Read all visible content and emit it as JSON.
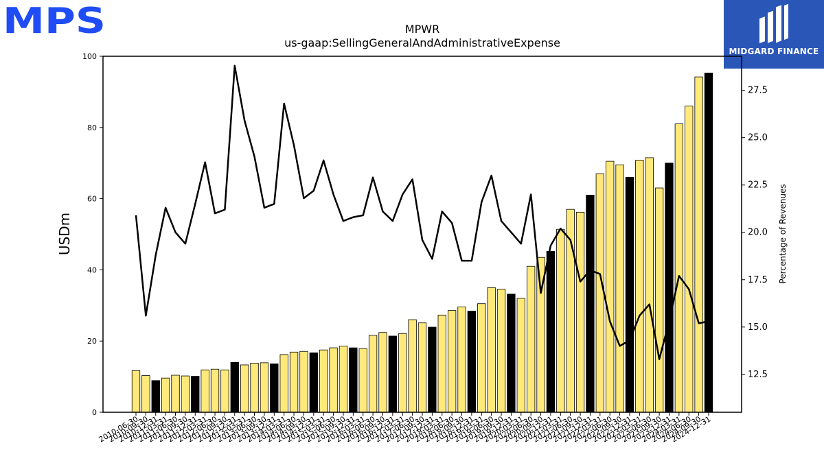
{
  "branding": {
    "mps_logo_text": "MPS",
    "midgard_name": "MIDGARD FINANCE",
    "mps_color": "#1f4cf5",
    "midgard_bg": "#2a56b8"
  },
  "chart_data": {
    "type": "bar",
    "title": "MPWR",
    "subtitle": "us-gaap:SellingGeneralAndAdministrativeExpense",
    "ylabel": "USDm",
    "y2label": "Percentage of Revenues",
    "ylim": [
      0,
      100
    ],
    "y2lim": [
      10.5,
      29.3
    ],
    "yticks": [
      "0",
      "20",
      "40",
      "60",
      "80",
      "100"
    ],
    "y2ticks": [
      "12.5",
      "15.0",
      "17.5",
      "20.0",
      "22.5",
      "25.0",
      "27.5"
    ],
    "bar_color_quarter": "#ffe97a",
    "bar_color_annual": "#000000",
    "line_color": "#000000",
    "categories": [
      "2010-06-30",
      "2010-09-30",
      "2010-12-31",
      "2011-03-31",
      "2011-06-30",
      "2011-09-30",
      "2011-12-31",
      "2012-03-31",
      "2012-06-30",
      "2012-09-30",
      "2012-12-31",
      "2013-03-31",
      "2013-06-30",
      "2013-09-30",
      "2013-12-31",
      "2014-03-31",
      "2014-06-30",
      "2014-09-30",
      "2014-12-31",
      "2015-03-31",
      "2015-06-30",
      "2015-09-30",
      "2015-12-31",
      "2016-03-31",
      "2016-06-30",
      "2016-09-30",
      "2016-12-31",
      "2017-03-31",
      "2017-06-30",
      "2017-09-30",
      "2017-12-31",
      "2018-03-31",
      "2018-06-30",
      "2018-09-30",
      "2018-12-31",
      "2019-03-31",
      "2019-06-30",
      "2019-09-30",
      "2019-12-31",
      "2020-03-31",
      "2020-06-30",
      "2020-09-30",
      "2020-12-31",
      "2021-03-31",
      "2021-06-30",
      "2021-09-30",
      "2021-12-31",
      "2022-03-31",
      "2022-06-30",
      "2022-09-30",
      "2022-12-31",
      "2023-03-31",
      "2023-06-30",
      "2023-09-30",
      "2023-12-31",
      "2024-03-31",
      "2024-06-30",
      "2024-09-30",
      "2024-12-31"
    ],
    "annual": [
      false,
      false,
      true,
      false,
      false,
      false,
      true,
      false,
      false,
      false,
      true,
      false,
      false,
      false,
      true,
      false,
      false,
      false,
      true,
      false,
      false,
      false,
      true,
      false,
      false,
      false,
      true,
      false,
      false,
      false,
      true,
      false,
      false,
      false,
      true,
      false,
      false,
      false,
      true,
      false,
      false,
      false,
      true,
      false,
      false,
      false,
      true,
      false,
      false,
      false,
      true,
      false,
      false,
      false,
      true,
      false,
      false,
      false,
      true
    ],
    "values": [
      11.7,
      10.3,
      8.9,
      9.6,
      10.4,
      10.2,
      10.1,
      11.9,
      12.1,
      11.9,
      14.0,
      13.3,
      13.8,
      13.9,
      13.6,
      16.2,
      16.9,
      17.1,
      16.7,
      17.5,
      18.1,
      18.6,
      18.1,
      17.9,
      21.6,
      22.4,
      21.4,
      22.1,
      26.0,
      25.1,
      23.9,
      27.3,
      28.6,
      29.6,
      28.4,
      30.5,
      35.0,
      34.6,
      33.2,
      32.0,
      41.0,
      43.5,
      45.2,
      51.4,
      57.0,
      56.2,
      61.0,
      67.0,
      70.5,
      69.5,
      66.0,
      70.8,
      71.5,
      63.0,
      70.0,
      81.0,
      86.0,
      94.2,
      95.3
    ],
    "line_pct": [
      20.9,
      15.6,
      18.8,
      21.3,
      20.0,
      19.4,
      21.5,
      23.7,
      21.0,
      21.2,
      28.8,
      25.9,
      24.0,
      21.3,
      21.5,
      26.8,
      24.6,
      21.8,
      22.2,
      23.8,
      22.0,
      20.6,
      20.8,
      20.9,
      22.9,
      21.1,
      20.6,
      22.0,
      22.8,
      19.6,
      18.6,
      21.1,
      20.5,
      18.5,
      18.5,
      21.6,
      23.0,
      20.6,
      20.0,
      19.4,
      22.0,
      16.8,
      19.3,
      20.2,
      19.6,
      17.4,
      18.0,
      17.8,
      15.3,
      14.0,
      14.3,
      15.6,
      16.2,
      13.3,
      15.3,
      17.7,
      17.0,
      15.2,
      15.3
    ]
  }
}
